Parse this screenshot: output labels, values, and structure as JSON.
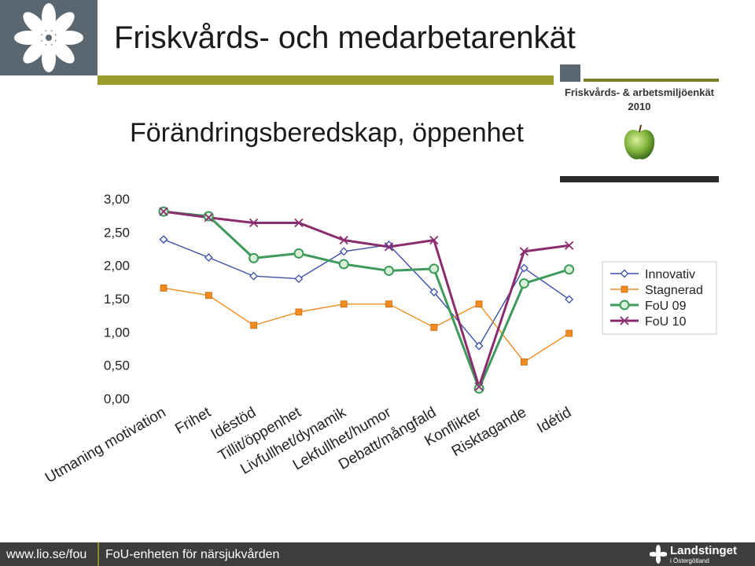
{
  "header": {
    "title": "Friskvårds- och medarbetarenkät",
    "subtitle": "Förändringsberedskap, öppenhet"
  },
  "badge": {
    "title": "Friskvårds- & arbetsmiljöenkät",
    "year": "2010"
  },
  "footer": {
    "url": "www.lio.se/fou",
    "unit": "FoU-enheten för närsjukvården",
    "brand": "Landstinget",
    "brand_sub": "i Östergötland"
  },
  "colors": {
    "innovativ": "#3a4fa8",
    "stagnerad": "#f28c1e",
    "fou09": "#3e9a5a",
    "fou10": "#8a2d6e",
    "olive": "#9b9b2c"
  },
  "chart_data": {
    "type": "line",
    "categories": [
      "Utmaning motivation",
      "Frihet",
      "Idéstöd",
      "Tillit/öppenhet",
      "Livfullhet/dynamik",
      "Lekfullhet/humor",
      "Debatt/mångfald",
      "Konflikter",
      "Risktagande",
      "Idétid"
    ],
    "y_ticks": [
      "0,00",
      "0,50",
      "1,00",
      "1,50",
      "2,00",
      "2,50",
      "3,00"
    ],
    "ylim": [
      0,
      3
    ],
    "grid": false,
    "legend_position": "right",
    "series": [
      {
        "name": "Innovativ",
        "marker": "diamond",
        "values": [
          2.39,
          2.12,
          1.84,
          1.8,
          2.21,
          2.31,
          1.6,
          0.79,
          1.96,
          1.49
        ]
      },
      {
        "name": "Stagnerad",
        "marker": "square",
        "values": [
          1.66,
          1.55,
          1.1,
          1.3,
          1.42,
          1.42,
          1.07,
          1.42,
          0.55,
          0.98
        ]
      },
      {
        "name": "FoU 09",
        "marker": "circle",
        "values": [
          2.81,
          2.74,
          2.11,
          2.18,
          2.02,
          1.92,
          1.95,
          0.15,
          1.73,
          1.94
        ]
      },
      {
        "name": "FoU 10",
        "marker": "x",
        "values": [
          2.81,
          2.72,
          2.64,
          2.64,
          2.38,
          2.28,
          2.38,
          0.18,
          2.21,
          2.3
        ]
      }
    ]
  }
}
